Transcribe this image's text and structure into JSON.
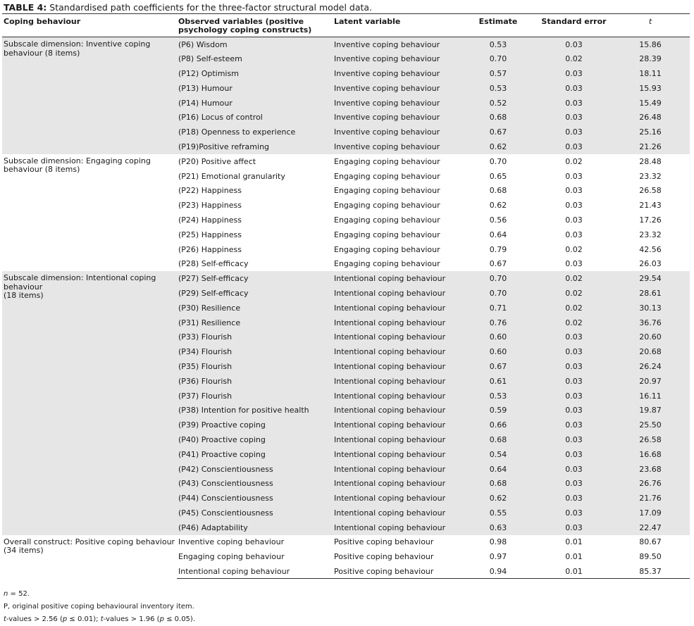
{
  "caption": {
    "label": "TABLE 4:",
    "text": " Standardised path coefficients for the three-factor structural model data."
  },
  "headers": [
    "Coping behaviour",
    "Observed variables (positive psychology coping constructs)",
    "Latent variable",
    "Estimate",
    "Standard error",
    "t"
  ],
  "groups": [
    {
      "dimension": "Subscale dimension: Inventive coping behaviour (8 items)",
      "shaded": true,
      "rows": [
        [
          "(P6) Wisdom",
          "Inventive coping behaviour",
          "0.53",
          "0.03",
          "15.86"
        ],
        [
          "(P8) Self-esteem",
          "Inventive coping behaviour",
          "0.70",
          "0.02",
          "28.39"
        ],
        [
          "(P12) Optimism",
          "Inventive coping behaviour",
          "0.57",
          "0.03",
          "18.11"
        ],
        [
          "(P13) Humour",
          "Inventive coping behaviour",
          "0.53",
          "0.03",
          "15.93"
        ],
        [
          "(P14) Humour",
          "Inventive coping behaviour",
          "0.52",
          "0.03",
          "15.49"
        ],
        [
          "(P16) Locus of control",
          "Inventive coping behaviour",
          "0.68",
          "0.03",
          "26.48"
        ],
        [
          "(P18) Openness to experience",
          "Inventive coping behaviour",
          "0.67",
          "0.03",
          "25.16"
        ],
        [
          "(P19)Positive reframing",
          "Inventive coping behaviour",
          "0.62",
          "0.03",
          "21.26"
        ]
      ]
    },
    {
      "dimension": "Subscale dimension: Engaging coping behaviour (8 items)",
      "shaded": false,
      "rows": [
        [
          "(P20) Positive affect",
          "Engaging coping behaviour",
          "0.70",
          "0.02",
          "28.48"
        ],
        [
          "(P21) Emotional granularity",
          "Engaging coping behaviour",
          "0.65",
          "0.03",
          "23.32"
        ],
        [
          "(P22) Happiness",
          "Engaging coping behaviour",
          "0.68",
          "0.03",
          "26.58"
        ],
        [
          "(P23) Happiness",
          "Engaging coping behaviour",
          "0.62",
          "0.03",
          "21.43"
        ],
        [
          "(P24) Happiness",
          "Engaging coping behaviour",
          "0.56",
          "0.03",
          "17.26"
        ],
        [
          "(P25) Happiness",
          "Engaging coping behaviour",
          "0.64",
          "0.03",
          "23.32"
        ],
        [
          "(P26) Happiness",
          "Engaging coping behaviour",
          "0.79",
          "0.02",
          "42.56"
        ],
        [
          "(P28) Self-efficacy",
          "Engaging coping behaviour",
          "0.67",
          "0.03",
          "26.03"
        ]
      ]
    },
    {
      "dimension": "Subscale dimension: Intentional coping behaviour\n(18 items)",
      "shaded": true,
      "rows": [
        [
          "(P27) Self-efficacy",
          "Intentional coping behaviour",
          "0.70",
          "0.02",
          "29.54"
        ],
        [
          "(P29) Self-efficacy",
          "Intentional coping behaviour",
          "0.70",
          "0.02",
          "28.61"
        ],
        [
          "(P30) Resilience",
          "Intentional coping behaviour",
          "0.71",
          "0.02",
          "30.13"
        ],
        [
          "(P31) Resilience",
          "Intentional coping behaviour",
          "0.76",
          "0.02",
          "36.76"
        ],
        [
          "(P33) Flourish",
          "Intentional coping behaviour",
          "0.60",
          "0.03",
          "20.60"
        ],
        [
          "(P34) Flourish",
          "Intentional coping behaviour",
          "0.60",
          "0.03",
          "20.68"
        ],
        [
          "(P35) Flourish",
          "Intentional coping behaviour",
          "0.67",
          "0.03",
          "26.24"
        ],
        [
          "(P36) Flourish",
          "Intentional coping behaviour",
          "0.61",
          "0.03",
          "20.97"
        ],
        [
          "(P37) Flourish",
          "Intentional coping behaviour",
          "0.53",
          "0.03",
          "16.11"
        ],
        [
          "(P38) Intention for positive health",
          "Intentional coping behaviour",
          "0.59",
          "0.03",
          "19.87"
        ],
        [
          "(P39) Proactive coping",
          "Intentional coping behaviour",
          "0.66",
          "0.03",
          "25.50"
        ],
        [
          "(P40) Proactive coping",
          "Intentional coping behaviour",
          "0.68",
          "0.03",
          "26.58"
        ],
        [
          "(P41) Proactive coping",
          "Intentional coping behaviour",
          "0.54",
          "0.03",
          "16.68"
        ],
        [
          "(P42) Conscientiousness",
          "Intentional coping behaviour",
          "0.64",
          "0.03",
          "23.68"
        ],
        [
          "(P43) Conscientiousness",
          "Intentional coping behaviour",
          "0.68",
          "0.03",
          "26.76"
        ],
        [
          "(P44) Conscientiousness",
          "Intentional coping behaviour",
          "0.62",
          "0.03",
          "21.76"
        ],
        [
          "(P45) Conscientiousness",
          "Intentional coping behaviour",
          "0.55",
          "0.03",
          "17.09"
        ],
        [
          "(P46) Adaptability",
          "Intentional coping behaviour",
          "0.63",
          "0.03",
          "22.47"
        ]
      ]
    },
    {
      "dimension": "Overall construct: Positive coping behaviour (34 items)",
      "shaded": false,
      "rows": [
        [
          "Inventive coping behaviour",
          "Positive coping behaviour",
          "0.98",
          "0.01",
          "80.67"
        ],
        [
          "Engaging coping behaviour",
          "Positive coping behaviour",
          "0.97",
          "0.01",
          "89.50"
        ],
        [
          "Intentional coping behaviour",
          "Positive coping behaviour",
          "0.94",
          "0.01",
          "85.37"
        ]
      ]
    }
  ],
  "notes": {
    "n": {
      "italic": "n",
      "rest": " = 52."
    },
    "p_note": "P, original positive coping behavioural inventory item.",
    "t_note": {
      "t1": "t",
      "a": "-values > 2.56 (",
      "p1": "p",
      "b": " ≤ 0.01); ",
      "t2": "t",
      "c": "-values > 1.96 (",
      "p2": "p",
      "d": " ≤ 0.05)."
    }
  }
}
